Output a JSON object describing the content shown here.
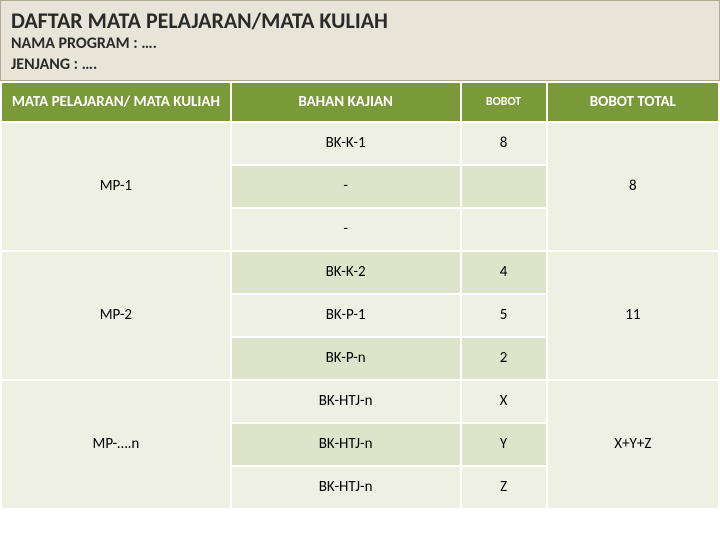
{
  "title": "DAFTAR MATA PELAJARAN/MATA KULIAH",
  "subtitle_line1": "NAMA PROGRAM  : ….",
  "subtitle_line2": "JENJANG               : ….",
  "colors": {
    "title_bg": "#e8e4d7",
    "header_bg": "#7a9a3a",
    "stripe_a": "#eef0e3",
    "stripe_b": "#dde4ca",
    "text_dark": "#2a2a2a",
    "text_white": "#ffffff"
  },
  "headers": {
    "subject": "MATA PELAJARAN/ MATA KULIAH",
    "kajian": "BAHAN KAJIAN",
    "bobot": "BOBOT",
    "total": "BOBOT TOTAL"
  },
  "groups": [
    {
      "subject": "MP-1",
      "total": "8",
      "rows": [
        {
          "kajian": "BK-K-1",
          "bobot": "8"
        },
        {
          "kajian": "-",
          "bobot": ""
        },
        {
          "kajian": "-",
          "bobot": ""
        }
      ]
    },
    {
      "subject": "MP-2",
      "total": "11",
      "rows": [
        {
          "kajian": "BK-K-2",
          "bobot": "4"
        },
        {
          "kajian": "BK-P-1",
          "bobot": "5"
        },
        {
          "kajian": "BK-P-n",
          "bobot": "2"
        }
      ]
    },
    {
      "subject": "MP-….n",
      "total": "X+Y+Z",
      "rows": [
        {
          "kajian": "BK-HTJ-n",
          "bobot": "X"
        },
        {
          "kajian": "BK-HTJ-n",
          "bobot": "Y"
        },
        {
          "kajian": "BK-HTJ-n",
          "bobot": "Z"
        }
      ]
    }
  ]
}
